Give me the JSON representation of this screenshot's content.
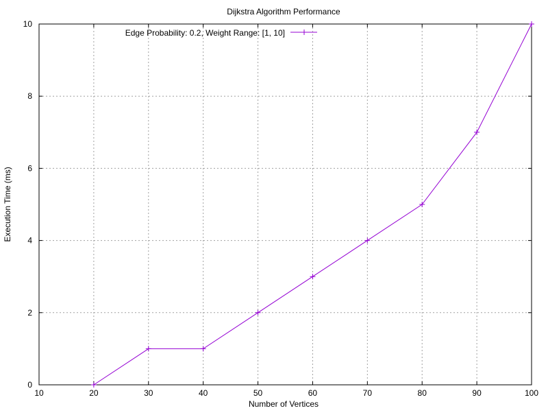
{
  "chart_data": {
    "type": "line",
    "title": "Dijkstra Algorithm Performance",
    "xlabel": "Number of Vertices",
    "ylabel": "Execution Time (ms)",
    "xlim": [
      10,
      100
    ],
    "ylim": [
      0,
      10
    ],
    "xticks": [
      "10",
      "20",
      "30",
      "40",
      "50",
      "60",
      "70",
      "80",
      "90",
      "100"
    ],
    "yticks": [
      "0",
      "2",
      "4",
      "6",
      "8",
      "10"
    ],
    "grid": true,
    "legend_position": "top-left",
    "series": [
      {
        "name": "Edge Probability: 0.2, Weight Range: [1, 10]",
        "color": "#9400d3",
        "marker": "plus",
        "x": [
          20,
          30,
          40,
          50,
          60,
          70,
          80,
          90,
          100
        ],
        "y": [
          0,
          1,
          1,
          2,
          3,
          4,
          5,
          7,
          10
        ]
      }
    ]
  }
}
